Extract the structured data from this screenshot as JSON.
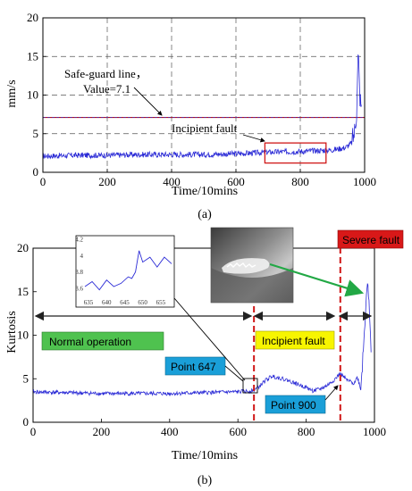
{
  "chart_data": [
    {
      "type": "line",
      "panel_label": "(a)",
      "title": "",
      "xlabel": "Time/10mins",
      "ylabel": "mm/s",
      "xlim": [
        0,
        1000
      ],
      "ylim": [
        0,
        20
      ],
      "xticks": [
        "0",
        "200",
        "400",
        "600",
        "800",
        "1000"
      ],
      "yticks": [
        "0",
        "5",
        "10",
        "15",
        "20"
      ],
      "grid": true,
      "reference_line": {
        "y": 7.1
      },
      "annotations": {
        "safeguard_line1": "Safe-guard line，",
        "safeguard_line2": "Value=7.1",
        "incipient": "Incipient fault"
      },
      "highlight_box": {
        "x0": 690,
        "x1": 880,
        "y0": 1.2,
        "y1": 3.8
      },
      "series": [
        {
          "color": "#2b2bd6",
          "x": [
            0,
            100,
            200,
            300,
            400,
            500,
            600,
            700,
            800,
            900,
            940,
            960,
            970,
            975,
            980,
            985,
            990
          ],
          "y": [
            2.1,
            2.2,
            2.2,
            2.3,
            2.3,
            2.3,
            2.4,
            2.6,
            2.7,
            2.9,
            3.2,
            3.8,
            5.5,
            8.0,
            15.5,
            10.0,
            8.0
          ]
        }
      ]
    },
    {
      "type": "line",
      "panel_label": "(b)",
      "title": "",
      "xlabel": "Time/10mins",
      "ylabel": "Kurtosis",
      "xlim": [
        0,
        1000
      ],
      "ylim": [
        0,
        20
      ],
      "xticks": [
        "0",
        "200",
        "400",
        "600",
        "800",
        "1000"
      ],
      "yticks": [
        "0",
        "5",
        "10",
        "15",
        "20"
      ],
      "grid": false,
      "fault_lines": [
        647,
        900
      ],
      "stages": {
        "normal": "Normal operation",
        "incipient": "Incipient fault",
        "severe": "Severe fault"
      },
      "point_labels": {
        "p647": "Point 647",
        "p900": "Point 900"
      },
      "photo_label": "bearing-defect-photo",
      "colors": {
        "normal": "#4fc24f",
        "incipient": "#f7f500",
        "severe": "#d81818",
        "point": "#1a9fd8",
        "arrow": "#22a845",
        "line": "#2b2bd6"
      },
      "series": [
        {
          "color": "#2b2bd6",
          "x": [
            0,
            100,
            200,
            300,
            400,
            500,
            600,
            640,
            660,
            680,
            700,
            720,
            740,
            760,
            780,
            800,
            820,
            840,
            860,
            880,
            900,
            920,
            940,
            950,
            960,
            970,
            975,
            980,
            990
          ],
          "y": [
            3.5,
            3.4,
            3.3,
            3.3,
            3.3,
            3.4,
            3.5,
            3.6,
            4.0,
            4.8,
            5.3,
            5.1,
            4.9,
            4.6,
            4.3,
            4.0,
            3.6,
            3.8,
            4.2,
            4.8,
            5.6,
            4.8,
            4.5,
            5.2,
            3.8,
            10.0,
            14.0,
            16.8,
            8.0
          ]
        }
      ],
      "inset": {
        "xlim": [
          634,
          658
        ],
        "ylim": [
          3.5,
          4.2
        ],
        "xticks": [
          "635",
          "640",
          "645",
          "650",
          "655"
        ],
        "yticks": [
          "4.2",
          "4",
          "3.8",
          "3.6"
        ],
        "x": [
          634,
          636,
          638,
          640,
          642,
          644,
          646,
          647,
          648,
          649,
          650,
          652,
          654,
          656,
          658
        ],
        "y": [
          3.62,
          3.68,
          3.58,
          3.7,
          3.62,
          3.66,
          3.74,
          3.72,
          3.8,
          4.06,
          3.92,
          3.98,
          3.86,
          3.98,
          3.9
        ]
      }
    }
  ]
}
